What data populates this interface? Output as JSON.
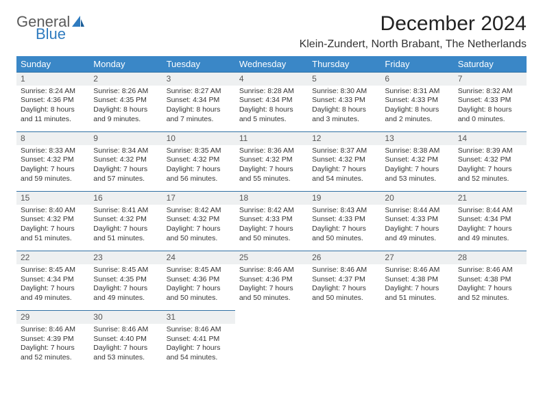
{
  "brand": {
    "line1": "General",
    "line2": "Blue"
  },
  "title": "December 2024",
  "location": "Klein-Zundert, North Brabant, The Netherlands",
  "colors": {
    "header_bg": "#3a87c7",
    "header_text": "#ffffff",
    "daynum_bg": "#eef0f1",
    "rule": "#2f6fa3",
    "brand_gray": "#5a5a5a",
    "brand_blue": "#2f7bbf"
  },
  "weekdays": [
    "Sunday",
    "Monday",
    "Tuesday",
    "Wednesday",
    "Thursday",
    "Friday",
    "Saturday"
  ],
  "weeks": [
    [
      {
        "n": "1",
        "sr": "8:24 AM",
        "ss": "4:36 PM",
        "dl": "8 hours and 11 minutes."
      },
      {
        "n": "2",
        "sr": "8:26 AM",
        "ss": "4:35 PM",
        "dl": "8 hours and 9 minutes."
      },
      {
        "n": "3",
        "sr": "8:27 AM",
        "ss": "4:34 PM",
        "dl": "8 hours and 7 minutes."
      },
      {
        "n": "4",
        "sr": "8:28 AM",
        "ss": "4:34 PM",
        "dl": "8 hours and 5 minutes."
      },
      {
        "n": "5",
        "sr": "8:30 AM",
        "ss": "4:33 PM",
        "dl": "8 hours and 3 minutes."
      },
      {
        "n": "6",
        "sr": "8:31 AM",
        "ss": "4:33 PM",
        "dl": "8 hours and 2 minutes."
      },
      {
        "n": "7",
        "sr": "8:32 AM",
        "ss": "4:33 PM",
        "dl": "8 hours and 0 minutes."
      }
    ],
    [
      {
        "n": "8",
        "sr": "8:33 AM",
        "ss": "4:32 PM",
        "dl": "7 hours and 59 minutes."
      },
      {
        "n": "9",
        "sr": "8:34 AM",
        "ss": "4:32 PM",
        "dl": "7 hours and 57 minutes."
      },
      {
        "n": "10",
        "sr": "8:35 AM",
        "ss": "4:32 PM",
        "dl": "7 hours and 56 minutes."
      },
      {
        "n": "11",
        "sr": "8:36 AM",
        "ss": "4:32 PM",
        "dl": "7 hours and 55 minutes."
      },
      {
        "n": "12",
        "sr": "8:37 AM",
        "ss": "4:32 PM",
        "dl": "7 hours and 54 minutes."
      },
      {
        "n": "13",
        "sr": "8:38 AM",
        "ss": "4:32 PM",
        "dl": "7 hours and 53 minutes."
      },
      {
        "n": "14",
        "sr": "8:39 AM",
        "ss": "4:32 PM",
        "dl": "7 hours and 52 minutes."
      }
    ],
    [
      {
        "n": "15",
        "sr": "8:40 AM",
        "ss": "4:32 PM",
        "dl": "7 hours and 51 minutes."
      },
      {
        "n": "16",
        "sr": "8:41 AM",
        "ss": "4:32 PM",
        "dl": "7 hours and 51 minutes."
      },
      {
        "n": "17",
        "sr": "8:42 AM",
        "ss": "4:32 PM",
        "dl": "7 hours and 50 minutes."
      },
      {
        "n": "18",
        "sr": "8:42 AM",
        "ss": "4:33 PM",
        "dl": "7 hours and 50 minutes."
      },
      {
        "n": "19",
        "sr": "8:43 AM",
        "ss": "4:33 PM",
        "dl": "7 hours and 50 minutes."
      },
      {
        "n": "20",
        "sr": "8:44 AM",
        "ss": "4:33 PM",
        "dl": "7 hours and 49 minutes."
      },
      {
        "n": "21",
        "sr": "8:44 AM",
        "ss": "4:34 PM",
        "dl": "7 hours and 49 minutes."
      }
    ],
    [
      {
        "n": "22",
        "sr": "8:45 AM",
        "ss": "4:34 PM",
        "dl": "7 hours and 49 minutes."
      },
      {
        "n": "23",
        "sr": "8:45 AM",
        "ss": "4:35 PM",
        "dl": "7 hours and 49 minutes."
      },
      {
        "n": "24",
        "sr": "8:45 AM",
        "ss": "4:36 PM",
        "dl": "7 hours and 50 minutes."
      },
      {
        "n": "25",
        "sr": "8:46 AM",
        "ss": "4:36 PM",
        "dl": "7 hours and 50 minutes."
      },
      {
        "n": "26",
        "sr": "8:46 AM",
        "ss": "4:37 PM",
        "dl": "7 hours and 50 minutes."
      },
      {
        "n": "27",
        "sr": "8:46 AM",
        "ss": "4:38 PM",
        "dl": "7 hours and 51 minutes."
      },
      {
        "n": "28",
        "sr": "8:46 AM",
        "ss": "4:38 PM",
        "dl": "7 hours and 52 minutes."
      }
    ],
    [
      {
        "n": "29",
        "sr": "8:46 AM",
        "ss": "4:39 PM",
        "dl": "7 hours and 52 minutes."
      },
      {
        "n": "30",
        "sr": "8:46 AM",
        "ss": "4:40 PM",
        "dl": "7 hours and 53 minutes."
      },
      {
        "n": "31",
        "sr": "8:46 AM",
        "ss": "4:41 PM",
        "dl": "7 hours and 54 minutes."
      },
      null,
      null,
      null,
      null
    ]
  ],
  "labels": {
    "sunrise": "Sunrise: ",
    "sunset": "Sunset: ",
    "daylight": "Daylight: "
  }
}
